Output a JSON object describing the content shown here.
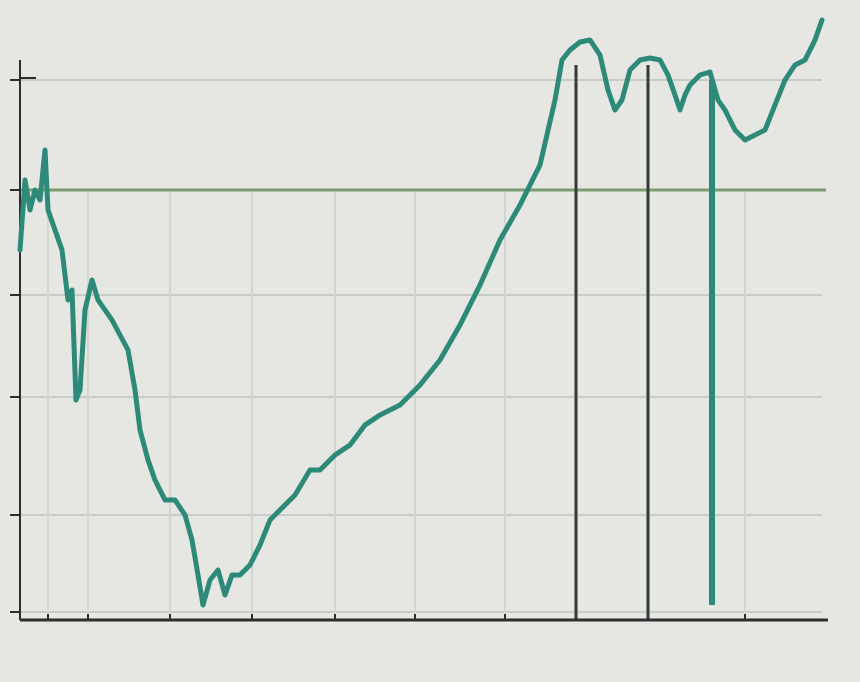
{
  "chart_data": {
    "type": "line",
    "xlim": [
      0,
      808
    ],
    "ylim": [
      -8,
      600
    ],
    "xticks": [
      28,
      68,
      150,
      232,
      315,
      395,
      485,
      725
    ],
    "yticks": [
      0,
      97,
      215,
      317,
      422,
      532
    ],
    "grid": true,
    "hlines": [
      {
        "y": 422,
        "color": "#7c9c70"
      }
    ],
    "vlines": [
      {
        "x": 556,
        "from": -8,
        "to": 547,
        "color": "#2f3b38"
      },
      {
        "x": 628,
        "from": -8,
        "to": 547,
        "color": "#2f3b38"
      },
      {
        "x": 692,
        "from": 7,
        "to": 532,
        "color": "#2e8a78"
      }
    ],
    "series": [
      {
        "color": "#2e8a78",
        "x": [
          0,
          5,
          10,
          15,
          20,
          25,
          28,
          35,
          42,
          48,
          52,
          56,
          60,
          65,
          72,
          78,
          85,
          92,
          100,
          108,
          115,
          120,
          128,
          135,
          145,
          155,
          165,
          172,
          178,
          183,
          190,
          198,
          205,
          212,
          220,
          230,
          240,
          250,
          260,
          275,
          290,
          300,
          315,
          330,
          345,
          360,
          380,
          400,
          420,
          440,
          460,
          480,
          500,
          520,
          535,
          542,
          550,
          560,
          570,
          580,
          588,
          595,
          602,
          610,
          620,
          630,
          640,
          648,
          655,
          660,
          665,
          670,
          680,
          690,
          698,
          705,
          715,
          725,
          735,
          745,
          755,
          765,
          775,
          785,
          795,
          802
        ],
        "values": [
          362,
          432,
          402,
          422,
          412,
          462,
          402,
          382,
          362,
          312,
          322,
          212,
          222,
          302,
          332,
          312,
          302,
          292,
          277,
          262,
          222,
          182,
          152,
          132,
          112,
          112,
          97,
          72,
          37,
          7,
          32,
          42,
          17,
          37,
          37,
          47,
          67,
          92,
          102,
          117,
          142,
          142,
          157,
          167,
          187,
          197,
          207,
          227,
          252,
          287,
          327,
          372,
          407,
          447,
          512,
          552,
          562,
          570,
          572,
          557,
          522,
          502,
          512,
          542,
          552,
          554,
          552,
          537,
          517,
          502,
          517,
          527,
          537,
          540,
          512,
          502,
          482,
          472,
          477,
          482,
          507,
          532,
          547,
          552,
          572,
          592
        ]
      }
    ]
  }
}
